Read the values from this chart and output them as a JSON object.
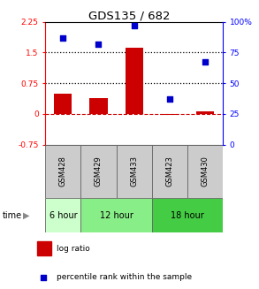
{
  "title": "GDS135 / 682",
  "samples": [
    "GSM428",
    "GSM429",
    "GSM433",
    "GSM423",
    "GSM430"
  ],
  "log_ratio": [
    0.5,
    0.38,
    1.62,
    -0.02,
    0.05
  ],
  "percentile": [
    87,
    82,
    97,
    37,
    67
  ],
  "left_ylim": [
    -0.75,
    2.25
  ],
  "right_ylim": [
    0,
    100
  ],
  "left_yticks": [
    -0.75,
    0,
    0.75,
    1.5,
    2.25
  ],
  "left_ytick_labels": [
    "-0.75",
    "0",
    "0.75",
    "1.5",
    "2.25"
  ],
  "right_yticks": [
    0,
    25,
    50,
    75,
    100
  ],
  "right_ytick_labels": [
    "0",
    "25",
    "50",
    "75",
    "100%"
  ],
  "hlines": [
    0.75,
    1.5
  ],
  "bar_color": "#cc0000",
  "scatter_color": "#0000cc",
  "zero_line_color": "#cc0000",
  "time_groups": [
    {
      "label": "6 hour",
      "samples": [
        "GSM428"
      ],
      "color": "#ccffcc"
    },
    {
      "label": "12 hour",
      "samples": [
        "GSM429",
        "GSM433"
      ],
      "color": "#88ee88"
    },
    {
      "label": "18 hour",
      "samples": [
        "GSM423",
        "GSM430"
      ],
      "color": "#44cc44"
    }
  ],
  "legend_bar_label": "log ratio",
  "legend_scatter_label": "percentile rank within the sample",
  "background_color": "#ffffff",
  "plot_bg_color": "#ffffff",
  "sample_label_bg": "#cccccc"
}
